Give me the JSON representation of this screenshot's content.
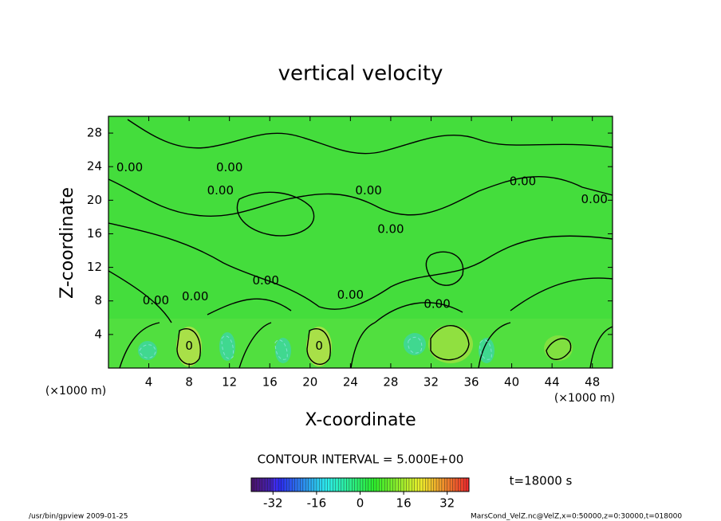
{
  "chart_data": {
    "type": "contour",
    "title": "vertical velocity",
    "x_label": "X-coordinate",
    "y_label": "Z-coordinate",
    "x_unit_label": "(×1000 m)",
    "y_unit_label": "(×1000 m)",
    "xlim": [
      0,
      50
    ],
    "xticks": [
      4,
      8,
      12,
      16,
      20,
      24,
      28,
      32,
      36,
      40,
      44,
      48
    ],
    "ylim": [
      0,
      30
    ],
    "yticks": [
      4,
      8,
      12,
      16,
      20,
      24,
      28
    ],
    "contour_labels": [
      {
        "x": 2.1,
        "z": 23.9,
        "label": "0.00"
      },
      {
        "x": 12.0,
        "z": 23.9,
        "label": "0.00"
      },
      {
        "x": 11.1,
        "z": 21.1,
        "label": "0.00"
      },
      {
        "x": 25.8,
        "z": 21.1,
        "label": "0.00"
      },
      {
        "x": 28.0,
        "z": 16.5,
        "label": "0.00"
      },
      {
        "x": 41.1,
        "z": 22.2,
        "label": "0.00"
      },
      {
        "x": 48.2,
        "z": 20.1,
        "label": "0.00"
      },
      {
        "x": 15.6,
        "z": 10.4,
        "label": "0.00"
      },
      {
        "x": 4.7,
        "z": 8.0,
        "label": "0.00"
      },
      {
        "x": 8.6,
        "z": 8.5,
        "label": "0.00"
      },
      {
        "x": 24.0,
        "z": 8.7,
        "label": "0.00"
      },
      {
        "x": 32.6,
        "z": 7.6,
        "label": "0.00"
      },
      {
        "x": 8.0,
        "z": 2.6,
        "label": "0"
      },
      {
        "x": 20.9,
        "z": 2.6,
        "label": "0"
      }
    ],
    "contour_interval_label": "CONTOUR INTERVAL = 5.000E+00",
    "time_label": "t=18000 s",
    "colorbar": {
      "lim": [
        -40,
        40
      ],
      "ticks": [
        -32,
        -16,
        0,
        16,
        32
      ]
    },
    "footer_left": "/usr/bin/gpview  2009-01-25",
    "footer_right": "MarsCond_VelZ.nc@VelZ,x=0:50000,z=0:30000,t=018000"
  }
}
